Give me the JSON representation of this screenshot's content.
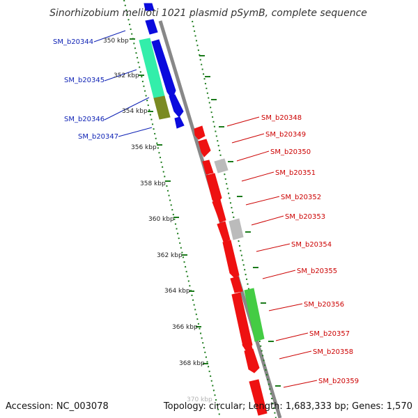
{
  "title": "Sinorhizobium meliloti 1021 plasmid pSymB, complete sequence",
  "footer": {
    "accession": "Accession: NC_003078",
    "summary": "Topology: circular; Length: 1,683,333 bp; Genes: 1,570"
  },
  "scale_labels": [
    "350 kbp",
    "352 kbp",
    "354 kbp",
    "356 kbp",
    "358 kbp",
    "360 kbp",
    "362 kbp",
    "364 kbp",
    "366 kbp",
    "368 kbp",
    "370 kbp"
  ],
  "colors": {
    "left_label": "#0b1fb4",
    "right_label": "#cc0000",
    "backbone": "#888888",
    "tick": "#1a7a1a",
    "blue_feature": "#0b0bdd",
    "red_feature": "#ee1111",
    "cyan_feature": "#33eeaa",
    "olive_feature": "#7a8a22",
    "gray_feature": "#bbbbbb",
    "green_feature": "#44cc44"
  },
  "genes_left": [
    {
      "label": "SM_b20344"
    },
    {
      "label": "SM_b20345"
    },
    {
      "label": "SM_b20346"
    },
    {
      "label": "SM_b20347"
    }
  ],
  "genes_right": [
    {
      "label": "SM_b20348"
    },
    {
      "label": "SM_b20349"
    },
    {
      "label": "SM_b20350"
    },
    {
      "label": "SM_b20351"
    },
    {
      "label": "SM_b20352"
    },
    {
      "label": "SM_b20353"
    },
    {
      "label": "SM_b20354"
    },
    {
      "label": "SM_b20355"
    },
    {
      "label": "SM_b20356"
    },
    {
      "label": "SM_b20357"
    },
    {
      "label": "SM_b20358"
    },
    {
      "label": "SM_b20359"
    }
  ]
}
